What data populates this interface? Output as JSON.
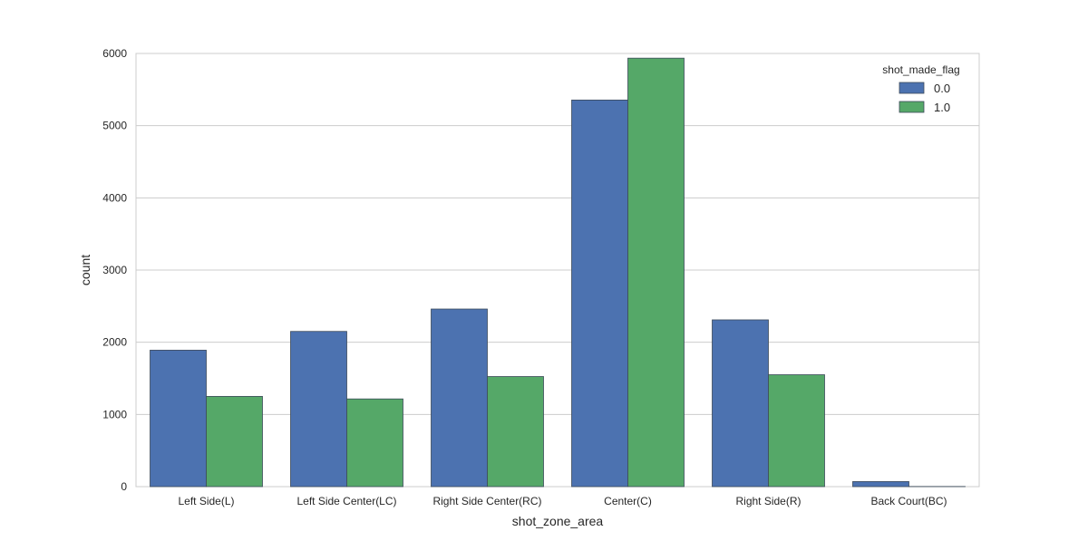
{
  "chart_data": {
    "type": "bar",
    "xlabel": "shot_zone_area",
    "ylabel": "count",
    "categories": [
      "Left Side(L)",
      "Left Side Center(LC)",
      "Right Side Center(RC)",
      "Center(C)",
      "Right Side(R)",
      "Back Court(BC)"
    ],
    "series": [
      {
        "name": "0.0",
        "color": "#4c72b0",
        "values": [
          1890,
          2150,
          2460,
          5355,
          2310,
          70
        ]
      },
      {
        "name": "1.0",
        "color": "#55a868",
        "values": [
          1250,
          1215,
          1525,
          5935,
          1550,
          2
        ]
      }
    ],
    "ylim": [
      0,
      6000
    ],
    "yticks": [
      0,
      1000,
      2000,
      3000,
      4000,
      5000,
      6000
    ],
    "grid": true,
    "legend": {
      "title": "shot_made_flag",
      "position": "top-right"
    }
  }
}
